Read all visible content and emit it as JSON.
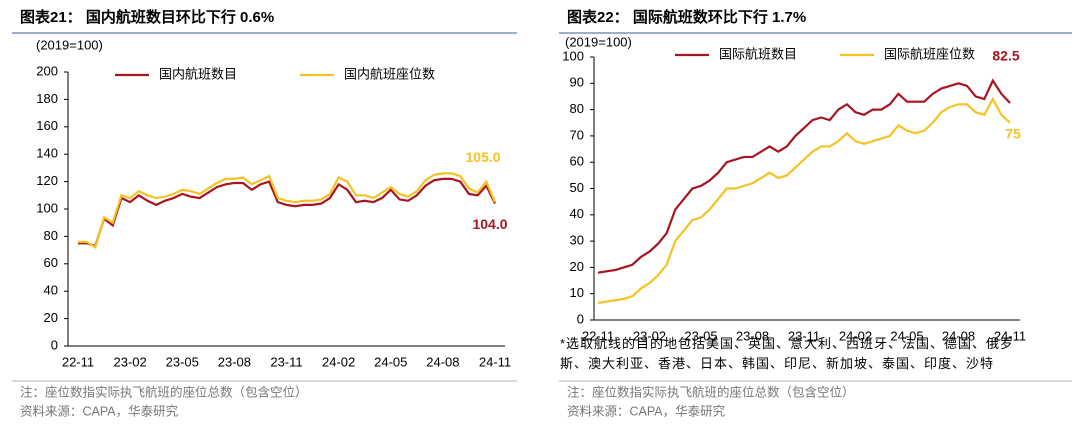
{
  "chart_data": [
    {
      "type": "line",
      "title": "图表21： 国内航班数目环比下行 0.6%",
      "y_label": "(2019=100)",
      "categories": [
        "22-11",
        null,
        null,
        null,
        null,
        null,
        "23-02",
        null,
        null,
        null,
        null,
        null,
        "23-05",
        null,
        null,
        null,
        null,
        null,
        "23-08",
        null,
        null,
        null,
        null,
        null,
        "23-11",
        null,
        null,
        null,
        null,
        null,
        "24-02",
        null,
        null,
        null,
        null,
        null,
        "24-05",
        null,
        null,
        null,
        null,
        null,
        "24-08",
        null,
        null,
        null,
        null,
        null,
        "24-11"
      ],
      "series": [
        {
          "name": "国内航班数目",
          "color": "#a8141f",
          "values": [
            75,
            75,
            73,
            93,
            88,
            108,
            105,
            110,
            106,
            103,
            106,
            108,
            111,
            109,
            108,
            112,
            116,
            118,
            119,
            119,
            114,
            118,
            120,
            105,
            103,
            102,
            103,
            103,
            104,
            108,
            118,
            114,
            105,
            106,
            105,
            108,
            114,
            107,
            106,
            110,
            117,
            121,
            122,
            122,
            120,
            111,
            110,
            117,
            104.0
          ],
          "value_labels": [
            null,
            null,
            null,
            null,
            null,
            null,
            null,
            null,
            null,
            null,
            null,
            null,
            null,
            null,
            null,
            null,
            null,
            null,
            null,
            null,
            null,
            null,
            null,
            null,
            null,
            null,
            null,
            null,
            null,
            null,
            null,
            null,
            null,
            null,
            null,
            null,
            null,
            null,
            null,
            null,
            null,
            null,
            null,
            null,
            null,
            null,
            null,
            null,
            "104.0"
          ]
        },
        {
          "name": "国内航班座位数",
          "color": "#f5c223",
          "values": [
            76,
            76,
            72,
            94,
            90,
            110,
            108,
            113,
            110,
            108,
            109,
            111,
            114,
            113,
            111,
            115,
            119,
            122,
            122,
            123,
            118,
            121,
            124,
            108,
            106,
            105,
            106,
            106,
            107,
            111,
            123,
            120,
            110,
            110,
            108,
            112,
            116,
            111,
            109,
            113,
            121,
            125,
            126,
            126,
            124,
            115,
            112,
            120,
            105.0
          ],
          "value_labels": [
            null,
            null,
            null,
            null,
            null,
            null,
            null,
            null,
            null,
            null,
            null,
            null,
            null,
            null,
            null,
            null,
            null,
            null,
            null,
            null,
            null,
            null,
            null,
            null,
            null,
            null,
            null,
            null,
            null,
            null,
            null,
            null,
            null,
            null,
            null,
            null,
            null,
            null,
            null,
            null,
            null,
            null,
            null,
            null,
            null,
            null,
            null,
            null,
            "105.0"
          ]
        }
      ],
      "ylim": [
        0,
        200
      ],
      "yticks": [
        0,
        20,
        40,
        60,
        80,
        100,
        120,
        140,
        160,
        180,
        200
      ],
      "legend": "top",
      "note": "注：座位数指实际执飞航班的座位总数（包含空位）",
      "source": "资料来源：CAPA，华泰研究"
    },
    {
      "type": "line",
      "title": "图表22： 国际航班数环比下行 1.7%",
      "y_label": "(2019=100)",
      "categories": [
        "22-11",
        null,
        null,
        null,
        null,
        null,
        "23-02",
        null,
        null,
        null,
        null,
        null,
        "23-05",
        null,
        null,
        null,
        null,
        null,
        "23-08",
        null,
        null,
        null,
        null,
        null,
        "23-11",
        null,
        null,
        null,
        null,
        null,
        "24-02",
        null,
        null,
        null,
        null,
        null,
        "24-05",
        null,
        null,
        null,
        null,
        null,
        "24-08",
        null,
        null,
        null,
        null,
        null,
        "24-11"
      ],
      "series": [
        {
          "name": "国际航班数目",
          "color": "#a8141f",
          "values": [
            18,
            18.5,
            19,
            20,
            21,
            24,
            26,
            29,
            33,
            42,
            46,
            50,
            51,
            53,
            56,
            60,
            61,
            62,
            62,
            64,
            66,
            64,
            66,
            70,
            73,
            76,
            77,
            76,
            80,
            82,
            79,
            78,
            80,
            80,
            82,
            86,
            83,
            83,
            83,
            86,
            88,
            89,
            90,
            89,
            85,
            84,
            91,
            86,
            82.5
          ],
          "value_labels": [
            null,
            null,
            null,
            null,
            null,
            null,
            null,
            null,
            null,
            null,
            null,
            null,
            null,
            null,
            null,
            null,
            null,
            null,
            null,
            null,
            null,
            null,
            null,
            null,
            null,
            null,
            null,
            null,
            null,
            null,
            null,
            null,
            null,
            null,
            null,
            null,
            null,
            null,
            null,
            null,
            null,
            null,
            null,
            null,
            null,
            null,
            null,
            null,
            "82.5"
          ]
        },
        {
          "name": "国际航班座位数",
          "color": "#f5c223",
          "values": [
            6.5,
            7,
            7.5,
            8,
            9,
            12,
            14,
            17,
            21,
            30,
            34,
            38,
            39,
            42,
            46,
            50,
            50,
            51,
            52,
            54,
            56,
            54,
            55,
            58,
            61,
            64,
            66,
            66,
            68,
            71,
            68,
            67,
            68,
            69,
            70,
            74,
            72,
            71,
            72,
            75,
            79,
            81,
            82,
            82,
            79,
            78,
            84,
            78,
            75
          ],
          "value_labels": [
            null,
            null,
            null,
            null,
            null,
            null,
            null,
            null,
            null,
            null,
            null,
            null,
            null,
            null,
            null,
            null,
            null,
            null,
            null,
            null,
            null,
            null,
            null,
            null,
            null,
            null,
            null,
            null,
            null,
            null,
            null,
            null,
            null,
            null,
            null,
            null,
            null,
            null,
            null,
            null,
            null,
            null,
            null,
            null,
            null,
            null,
            null,
            null,
            "75"
          ]
        }
      ],
      "ylim": [
        0,
        100
      ],
      "yticks": [
        0,
        10,
        20,
        30,
        40,
        50,
        60,
        70,
        80,
        90,
        100
      ],
      "legend": "top",
      "footnote": "*选取航线的目的地包括美国、英国、意大利、西班牙、法国、德国、俄罗斯、澳大利亚、香港、日本、韩国、印尼、新加坡、泰国、印度、沙特",
      "note": "注：座位数指实际执飞航班的座位总数（包含空位）",
      "source": "资料来源：CAPA，华泰研究"
    }
  ]
}
